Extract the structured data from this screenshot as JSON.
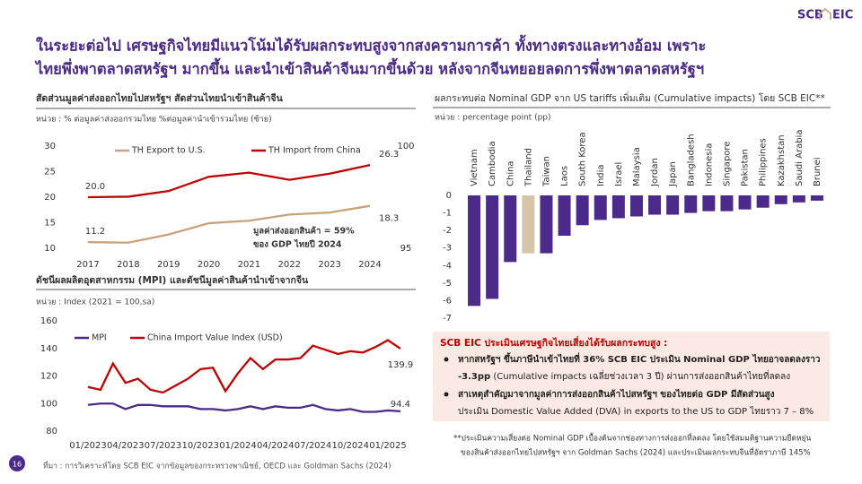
{
  "logo": {
    "left": "SCB",
    "right": "EIC"
  },
  "headline": [
    "ในระยะต่อไป เศรษฐกิจไทยมีแนวโน้มได้รับผลกระทบสูงจากสงครามการค้า ทั้งทางตรงและทางอ้อม เพราะ",
    "ไทยพึ่งพาตลาดสหรัฐฯ มากขึ้น และนำเข้าสินค้าจีนมากขึ้นด้วย หลังจากจีนทยอยลดการพึ่งพาตลาดสหรัฐฯ"
  ],
  "chart_data": [
    {
      "type": "line",
      "title": "สัดส่วนมูลค่าส่งออกไทยไปสหรัฐฯ สัดส่วนไทยนำเข้าสินค้าจีน",
      "subtitle": "หน่วย : % ต่อมูลค่าส่งออกรวมไทย %ต่อมูลค่านำเข้ารวมไทย (ซ้าย)",
      "categories": [
        "2017",
        "2018",
        "2019",
        "2020",
        "2021",
        "2022",
        "2023",
        "2024"
      ],
      "series": [
        {
          "name": "TH Export to U.S.",
          "color": "#c8a27a",
          "values": [
            11.2,
            11.1,
            12.7,
            14.9,
            15.4,
            16.6,
            17.0,
            18.3
          ],
          "value_labels": [
            "11.2",
            null,
            null,
            null,
            null,
            null,
            null,
            "18.3"
          ]
        },
        {
          "name": "TH Import from China",
          "color": "#c00000",
          "values": [
            20.0,
            20.1,
            21.2,
            24.0,
            24.8,
            23.4,
            24.6,
            26.3
          ],
          "value_labels": [
            "20.0",
            null,
            null,
            null,
            null,
            null,
            null,
            "26.3"
          ]
        }
      ],
      "ylim": [
        10,
        30
      ],
      "yticks": [
        10,
        15,
        20,
        25,
        30
      ],
      "y2lim": [
        95,
        100
      ],
      "y2ticks": [
        95,
        100
      ],
      "annotations": [
        "มูลค่าส่งออกสินค้า = 59%",
        "ของ GDP ไทยปี 2024"
      ]
    },
    {
      "type": "line",
      "title": "ดัชนีผลผลิตอุตสาหกรรม (MPI) และดัชนีมูลค่าสินค้านำเข้าจากจีน",
      "subtitle": "หน่วย : Index (2021 = 100,sa)",
      "categories": [
        "01/2023",
        null,
        null,
        "04/2023",
        null,
        null,
        "07/2023",
        null,
        null,
        "10/2023",
        null,
        null,
        "01/2024",
        null,
        null,
        "04/2024",
        null,
        null,
        "07/2024",
        null,
        null,
        "10/2024",
        null,
        null,
        "01/2025",
        null
      ],
      "series": [
        {
          "name": "MPI",
          "color": "#4b2a8a",
          "values": [
            99,
            100,
            100,
            96,
            99,
            99,
            98,
            98,
            98,
            96,
            96,
            95,
            96,
            98,
            96,
            98,
            97,
            97,
            99,
            96,
            95,
            96,
            94,
            94,
            95,
            94.4
          ]
        },
        {
          "name": "China Import Value Index (USD)",
          "color": "#c00000",
          "values": [
            112,
            110,
            129,
            115,
            118,
            110,
            108,
            113,
            118,
            125,
            126,
            109,
            122,
            133,
            125,
            132,
            132,
            133,
            142,
            139,
            136,
            138,
            137,
            141,
            146,
            139.9
          ]
        }
      ],
      "ylim": [
        80,
        160
      ],
      "yticks": [
        80,
        100,
        120,
        140,
        160
      ]
    },
    {
      "type": "bar",
      "title": "ผลกระทบต่อ Nominal GDP จาก US tariffs เพิ่มเติม (Cumulative impacts)  โดย SCB EIC**",
      "subtitle": "หน่วย : percentage point (pp)",
      "categories": [
        "Vietnam",
        "Cambodia",
        "China",
        "Thailand",
        "Taiwan",
        "Laos",
        "South Korea",
        "India",
        "Israel",
        "Malaysia",
        "Jordan",
        "Japan",
        "Bangladesh",
        "Indonesia",
        "Singapore",
        "Pakistan",
        "Philippines",
        "Kazakhstan",
        "Saudi Arabia",
        "Brunei"
      ],
      "values": [
        -6.3,
        -5.9,
        -3.8,
        -3.3,
        -3.3,
        -2.3,
        -1.7,
        -1.4,
        -1.3,
        -1.2,
        -1.1,
        -1.1,
        -1.0,
        -0.9,
        -0.9,
        -0.8,
        -0.7,
        -0.5,
        -0.4,
        -0.3
      ],
      "colors": [
        "#4b2a8a",
        "#4b2a8a",
        "#4b2a8a",
        "#d6c4a8",
        "#4b2a8a",
        "#4b2a8a",
        "#4b2a8a",
        "#4b2a8a",
        "#4b2a8a",
        "#4b2a8a",
        "#4b2a8a",
        "#4b2a8a",
        "#4b2a8a",
        "#4b2a8a",
        "#4b2a8a",
        "#4b2a8a",
        "#4b2a8a",
        "#4b2a8a",
        "#4b2a8a",
        "#4b2a8a"
      ],
      "ylim": [
        -7,
        0
      ],
      "yticks": [
        0,
        -1,
        -2,
        -3,
        -4,
        -5,
        -6,
        -7
      ]
    }
  ],
  "box": {
    "title": "SCB EIC ประเมินเศรษฐกิจไทยเสี่ยงได้รับผลกระทบสูง :",
    "bullets": [
      [
        [
          {
            "text": "หากสหรัฐฯ ขึ้นภาษีนำเข้าไทยที่ 36% SCB EIC ประเมิน Nominal GDP ไทยอาจลดลงราว",
            "bold": true
          }
        ],
        [
          {
            "text": "-3.3pp",
            "bold": true
          },
          {
            "text": " (Cumulative impacts เฉลี่ยช่วงเวลา 3 ปี) ผ่านการส่งออกสินค้าไทยที่ลดลง",
            "bold": false
          }
        ]
      ],
      [
        [
          {
            "text": "สาเหตุสำคัญมาจากมูลค่าการส่งออกสินค้าไปสหรัฐฯ ของไทยต่อ GDP มีสัดส่วนสูง",
            "bold": true
          }
        ],
        [
          {
            "text": "ประเมิน Domestic Value Added (DVA) in exports to the US to GDP ไทยราว 7 – 8%",
            "bold": false
          }
        ]
      ]
    ]
  },
  "footnote": [
    "**ประเมินความเสี่ยงต่อ Nominal GDP เบื้องต้นจากช่องทางการส่งออกที่ลดลง โดยใช้สมมติฐานความยืดหยุ่น",
    "ของสินค้าส่งออกไทยไปสหรัฐฯ จาก Goldman Sachs (2024) และประเมินผลกระทบจีนที่อัตราภาษี 145%"
  ],
  "source": "ที่มา : การวิเคราะห์โดย SCB EIC จากข้อมูลของกระทรวงพาณิชย์, OECD และ Goldman Sachs (2024)",
  "page": "16"
}
